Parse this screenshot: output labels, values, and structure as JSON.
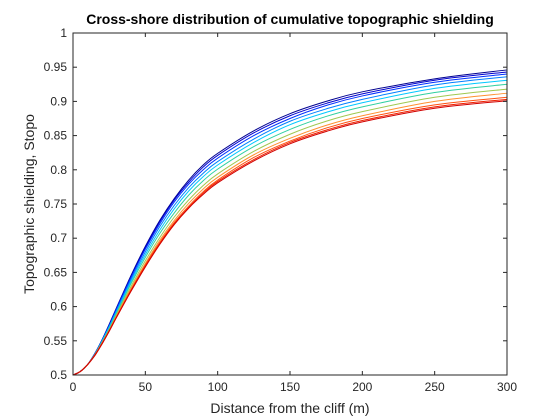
{
  "chart_data": {
    "type": "line",
    "title": "Cross-shore distribution of cumulative topographic shielding",
    "xlabel": "Distance from the cliff (m)",
    "ylabel": "Topographic shielding, Stopo",
    "xlim": [
      0,
      300
    ],
    "ylim": [
      0.5,
      1
    ],
    "xticks": [
      0,
      50,
      100,
      150,
      200,
      250,
      300
    ],
    "xtick_labels": [
      "0",
      "50",
      "100",
      "150",
      "200",
      "250",
      "300"
    ],
    "yticks": [
      0.5,
      0.55,
      0.6,
      0.65,
      0.7,
      0.75,
      0.8,
      0.85,
      0.9,
      0.95,
      1
    ],
    "ytick_labels": [
      "0.5",
      "0.55",
      "0.6",
      "0.65",
      "0.7",
      "0.75",
      "0.8",
      "0.85",
      "0.9",
      "0.95",
      "1"
    ],
    "grid": false,
    "legend": "none",
    "x": [
      0,
      5,
      10,
      15,
      20,
      25,
      30,
      40,
      50,
      60,
      70,
      80,
      90,
      100,
      125,
      150,
      175,
      200,
      250,
      300
    ],
    "series": [
      {
        "color": "#00008f",
        "values": [
          0.5,
          0.505,
          0.515,
          0.531,
          0.551,
          0.574,
          0.598,
          0.645,
          0.688,
          0.726,
          0.758,
          0.785,
          0.807,
          0.824,
          0.857,
          0.882,
          0.9,
          0.914,
          0.933,
          0.946
        ]
      },
      {
        "color": "#0000d0",
        "values": [
          0.5,
          0.505,
          0.515,
          0.531,
          0.551,
          0.573,
          0.597,
          0.643,
          0.686,
          0.724,
          0.756,
          0.782,
          0.804,
          0.821,
          0.854,
          0.879,
          0.897,
          0.911,
          0.931,
          0.943
        ]
      },
      {
        "color": "#0030ff",
        "values": [
          0.5,
          0.505,
          0.515,
          0.531,
          0.55,
          0.572,
          0.596,
          0.642,
          0.684,
          0.721,
          0.753,
          0.779,
          0.8,
          0.817,
          0.85,
          0.875,
          0.894,
          0.908,
          0.928,
          0.94
        ]
      },
      {
        "color": "#0080ff",
        "values": [
          0.5,
          0.505,
          0.515,
          0.53,
          0.55,
          0.571,
          0.594,
          0.639,
          0.68,
          0.717,
          0.748,
          0.774,
          0.795,
          0.812,
          0.845,
          0.871,
          0.889,
          0.903,
          0.924,
          0.936
        ]
      },
      {
        "color": "#00c8ff",
        "values": [
          0.5,
          0.505,
          0.515,
          0.53,
          0.549,
          0.57,
          0.592,
          0.636,
          0.676,
          0.712,
          0.743,
          0.769,
          0.79,
          0.807,
          0.84,
          0.866,
          0.884,
          0.898,
          0.919,
          0.931
        ]
      },
      {
        "color": "#30d0a0",
        "values": [
          0.5,
          0.505,
          0.515,
          0.53,
          0.548,
          0.568,
          0.59,
          0.633,
          0.672,
          0.707,
          0.737,
          0.763,
          0.784,
          0.801,
          0.834,
          0.859,
          0.878,
          0.892,
          0.913,
          0.925
        ]
      },
      {
        "color": "#a0c850",
        "values": [
          0.5,
          0.505,
          0.515,
          0.529,
          0.547,
          0.566,
          0.588,
          0.629,
          0.667,
          0.701,
          0.731,
          0.756,
          0.777,
          0.794,
          0.827,
          0.852,
          0.871,
          0.885,
          0.906,
          0.918
        ]
      },
      {
        "color": "#ff9030",
        "values": [
          0.5,
          0.505,
          0.515,
          0.529,
          0.546,
          0.565,
          0.586,
          0.626,
          0.663,
          0.697,
          0.726,
          0.751,
          0.772,
          0.789,
          0.822,
          0.846,
          0.865,
          0.879,
          0.9,
          0.912
        ]
      },
      {
        "color": "#ff5010",
        "values": [
          0.5,
          0.505,
          0.515,
          0.529,
          0.546,
          0.565,
          0.585,
          0.624,
          0.661,
          0.694,
          0.723,
          0.747,
          0.768,
          0.785,
          0.818,
          0.842,
          0.861,
          0.875,
          0.895,
          0.906
        ]
      },
      {
        "color": "#f02000",
        "values": [
          0.5,
          0.505,
          0.515,
          0.529,
          0.546,
          0.564,
          0.584,
          0.623,
          0.659,
          0.692,
          0.721,
          0.745,
          0.766,
          0.783,
          0.815,
          0.84,
          0.858,
          0.872,
          0.892,
          0.903
        ]
      },
      {
        "color": "#d00000",
        "values": [
          0.5,
          0.505,
          0.515,
          0.528,
          0.545,
          0.564,
          0.584,
          0.622,
          0.658,
          0.691,
          0.72,
          0.744,
          0.764,
          0.781,
          0.813,
          0.838,
          0.856,
          0.87,
          0.89,
          0.901
        ]
      }
    ]
  }
}
